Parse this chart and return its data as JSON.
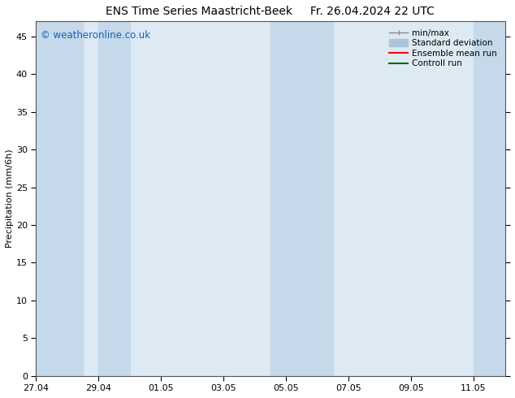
{
  "title_left": "ENS Time Series Maastricht-Beek",
  "title_right": "Fr. 26.04.2024 22 UTC",
  "ylabel": "Precipitation (mm/6h)",
  "ylim": [
    0,
    47
  ],
  "yticks": [
    0,
    5,
    10,
    15,
    20,
    25,
    30,
    35,
    40,
    45
  ],
  "x_min": 0,
  "x_max": 15,
  "x_tick_labels": [
    "27.04",
    "29.04",
    "01.05",
    "03.05",
    "05.05",
    "07.05",
    "09.05",
    "11.05"
  ],
  "x_tick_positions": [
    0,
    2,
    4,
    6,
    8,
    10,
    12,
    14
  ],
  "plot_bg_color": "#ddeaf3",
  "band_color": "#c5d9ea",
  "shaded_regions": [
    [
      0,
      1.5
    ],
    [
      2.0,
      3.0
    ],
    [
      7.5,
      9.5
    ],
    [
      14.0,
      15.0
    ]
  ],
  "fig_bg_color": "#ffffff",
  "legend_items": [
    {
      "label": "min/max",
      "color": "#888888",
      "lw": 1.0
    },
    {
      "label": "Standard deviation",
      "color": "#adc4d8",
      "lw": 5
    },
    {
      "label": "Ensemble mean run",
      "color": "#ff0000",
      "lw": 1.5
    },
    {
      "label": "Controll run",
      "color": "#006600",
      "lw": 1.5
    }
  ],
  "watermark": "© weatheronline.co.uk",
  "watermark_color": "#1a5fb4",
  "title_fontsize": 10,
  "label_fontsize": 8,
  "tick_fontsize": 8,
  "legend_fontsize": 7.5
}
